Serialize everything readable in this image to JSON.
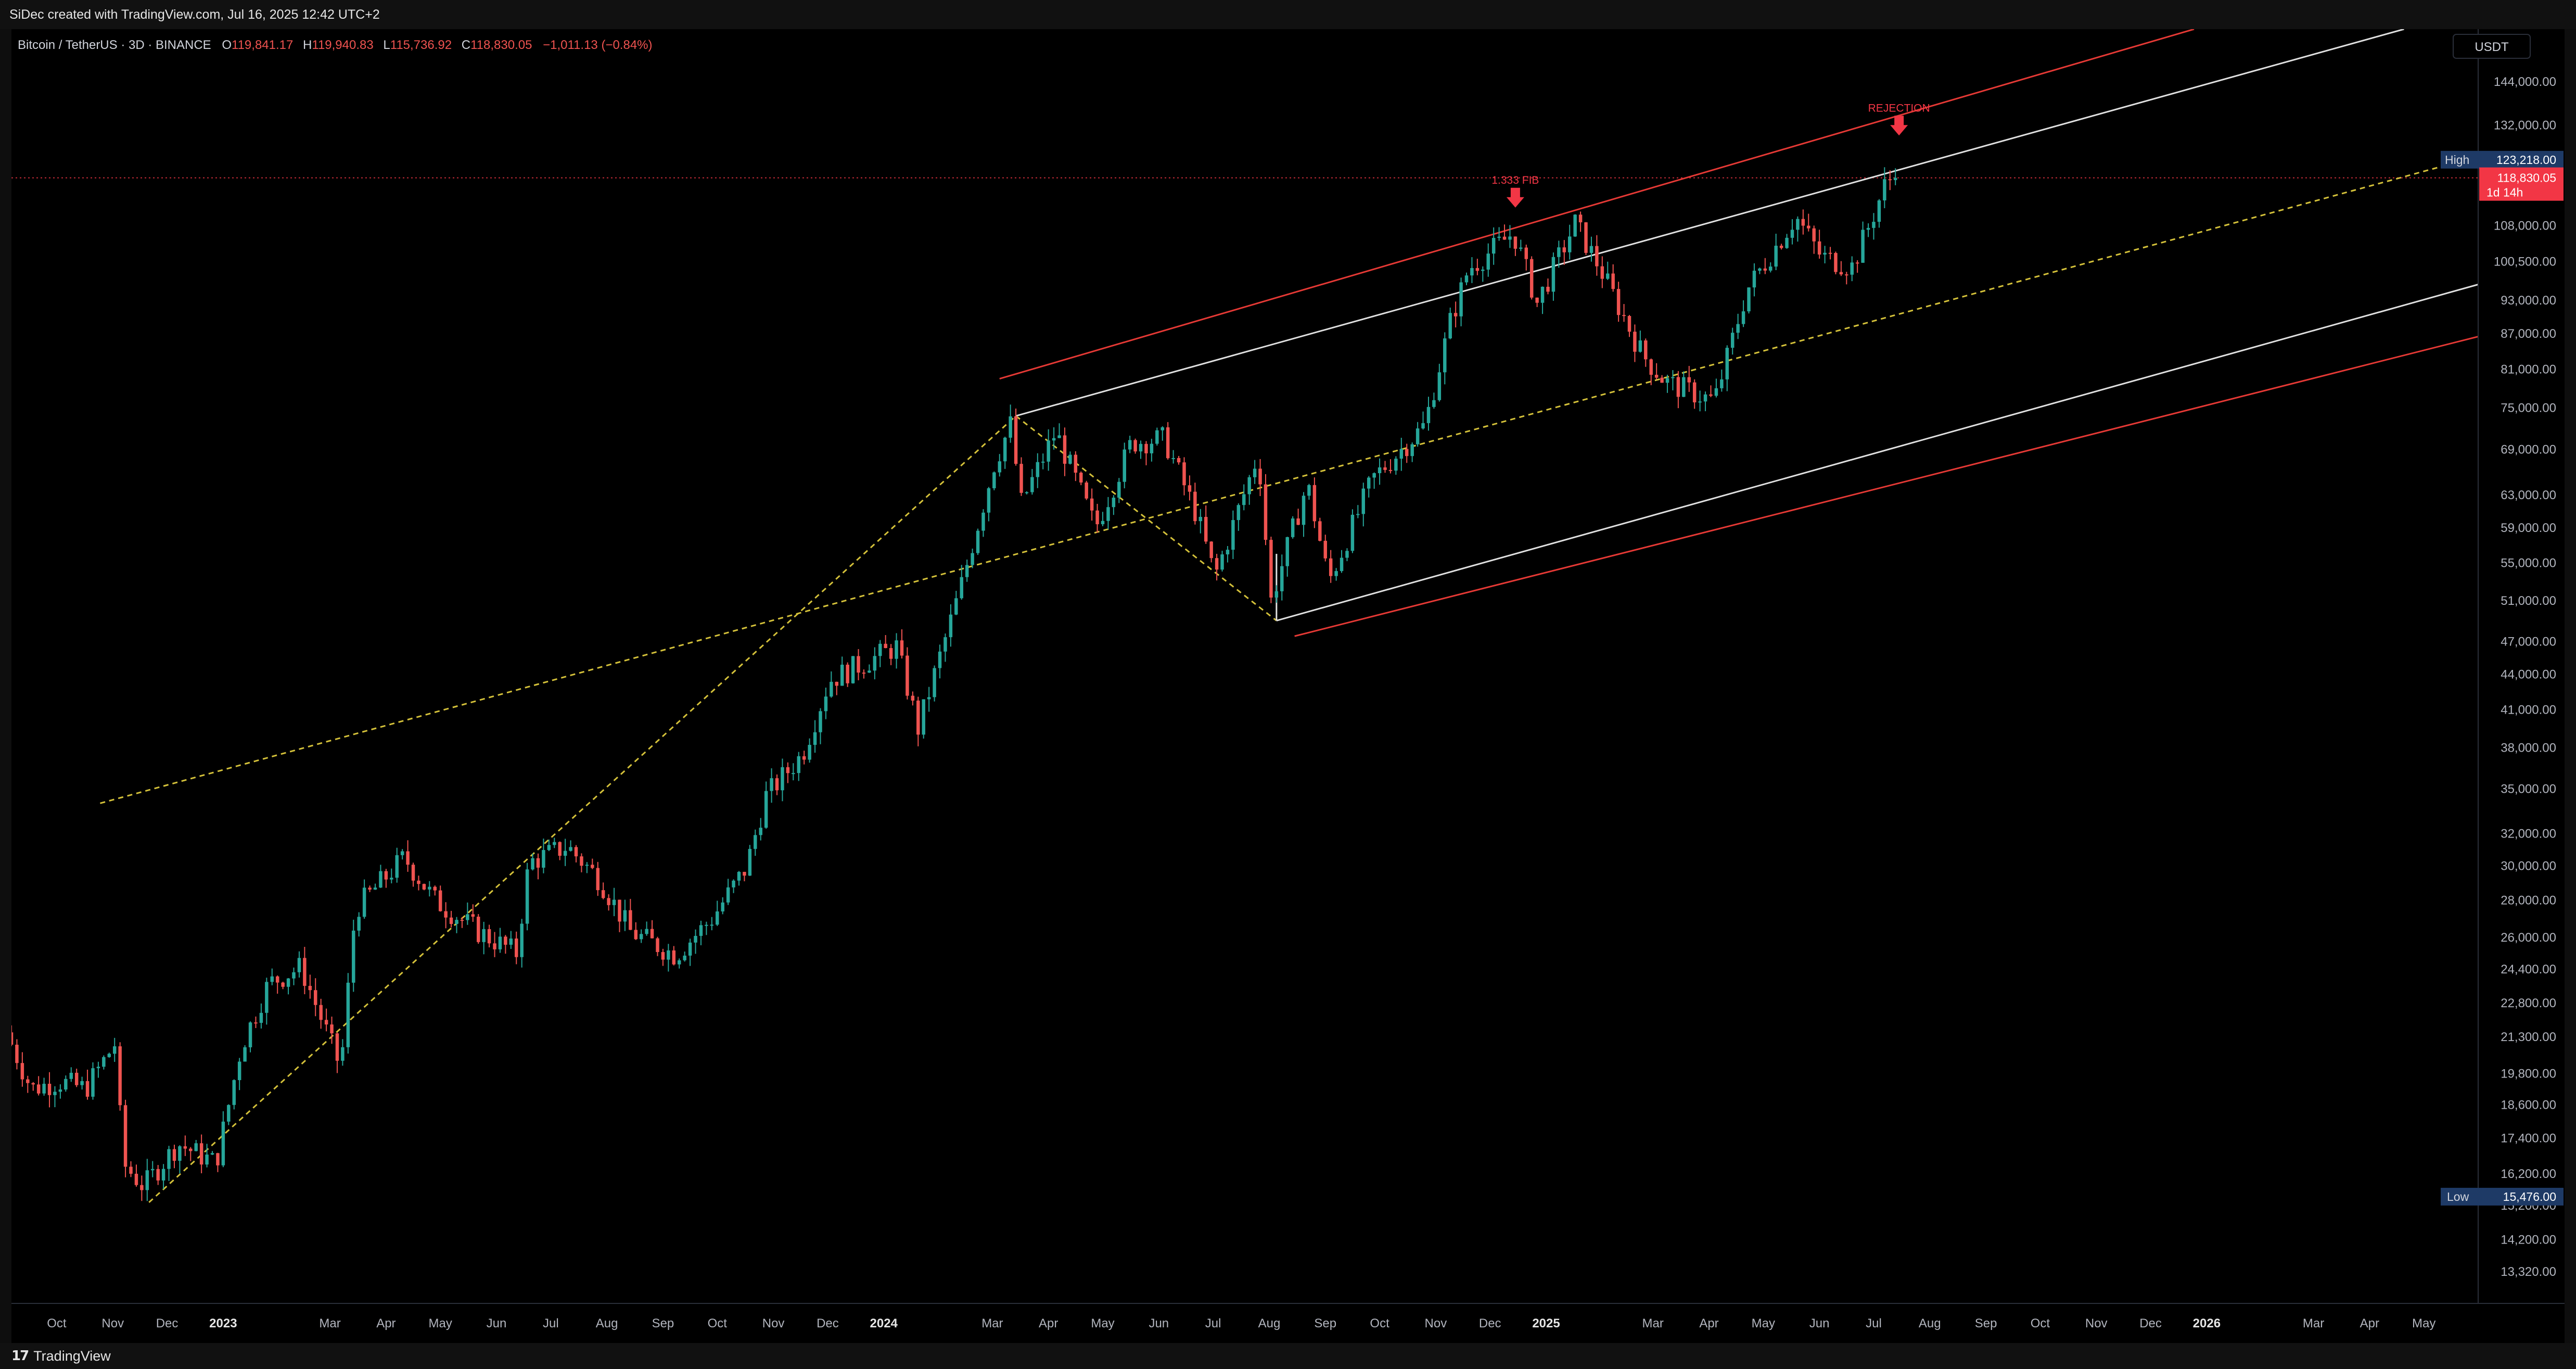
{
  "header": {
    "credit": "SiDec created with TradingView.com, Jul 16, 2025 12:42 UTC+2"
  },
  "footer": {
    "brand": "TradingView",
    "logo_glyph": "17"
  },
  "colors": {
    "background": "#000000",
    "up": "#26a69a",
    "down": "#ef5350",
    "red_channel": "#e53935",
    "white_channel": "#e0e0e0",
    "fib_dashed": "#d4c13a",
    "high_badge": "#1e3a66",
    "price_badge": "#f23645"
  },
  "chart_data": {
    "type": "candlestick",
    "symbol_line": {
      "name": "Bitcoin / TetherUS · 3D · BINANCE",
      "open_label": "O",
      "open": "119,841.17",
      "high_label": "H",
      "high": "119,940.83",
      "low_label": "L",
      "low": "115,736.92",
      "close_label": "C",
      "close": "118,830.05",
      "change": "−1,011.13 (−0.84%)"
    },
    "currency": "USDT",
    "y_scale": "log",
    "ylim": [
      12500,
      160000
    ],
    "x_start": "2022-09-06",
    "x_end": "2026-05-31",
    "y_ticks": [
      "144,000.00",
      "132,000.00",
      "108,000.00",
      "100,500.00",
      "93,000.00",
      "87,000.00",
      "81,000.00",
      "75,000.00",
      "69,000.00",
      "63,000.00",
      "59,000.00",
      "55,000.00",
      "51,000.00",
      "47,000.00",
      "44,000.00",
      "41,000.00",
      "38,000.00",
      "35,000.00",
      "32,000.00",
      "30,000.00",
      "28,000.00",
      "26,000.00",
      "24,400.00",
      "22,800.00",
      "21,300.00",
      "19,800.00",
      "18,600.00",
      "17,400.00",
      "16,200.00",
      "15,200.00",
      "14,200.00",
      "13,320.00"
    ],
    "x_ticks": [
      {
        "label": "Oct",
        "date": "2022-10-01"
      },
      {
        "label": "Nov",
        "date": "2022-11-01"
      },
      {
        "label": "Dec",
        "date": "2022-12-01"
      },
      {
        "label": "2023",
        "date": "2023-01-01",
        "bold": true
      },
      {
        "label": "Mar",
        "date": "2023-03-01"
      },
      {
        "label": "Apr",
        "date": "2023-04-01"
      },
      {
        "label": "May",
        "date": "2023-05-01"
      },
      {
        "label": "Jun",
        "date": "2023-06-01"
      },
      {
        "label": "Jul",
        "date": "2023-07-01"
      },
      {
        "label": "Aug",
        "date": "2023-08-01"
      },
      {
        "label": "Sep",
        "date": "2023-09-01"
      },
      {
        "label": "Oct",
        "date": "2023-10-01"
      },
      {
        "label": "Nov",
        "date": "2023-11-01"
      },
      {
        "label": "Dec",
        "date": "2023-12-01"
      },
      {
        "label": "2024",
        "date": "2024-01-01",
        "bold": true
      },
      {
        "label": "Mar",
        "date": "2024-03-01"
      },
      {
        "label": "Apr",
        "date": "2024-04-01"
      },
      {
        "label": "May",
        "date": "2024-05-01"
      },
      {
        "label": "Jun",
        "date": "2024-06-01"
      },
      {
        "label": "Jul",
        "date": "2024-07-01"
      },
      {
        "label": "Aug",
        "date": "2024-08-01"
      },
      {
        "label": "Sep",
        "date": "2024-09-01"
      },
      {
        "label": "Oct",
        "date": "2024-10-01"
      },
      {
        "label": "Nov",
        "date": "2024-11-01"
      },
      {
        "label": "Dec",
        "date": "2024-12-01"
      },
      {
        "label": "2025",
        "date": "2025-01-01",
        "bold": true
      },
      {
        "label": "Mar",
        "date": "2025-03-01"
      },
      {
        "label": "Apr",
        "date": "2025-04-01"
      },
      {
        "label": "May",
        "date": "2025-05-01"
      },
      {
        "label": "Jun",
        "date": "2025-06-01"
      },
      {
        "label": "Jul",
        "date": "2025-07-01"
      },
      {
        "label": "Aug",
        "date": "2025-08-01"
      },
      {
        "label": "Sep",
        "date": "2025-09-01"
      },
      {
        "label": "Oct",
        "date": "2025-10-01"
      },
      {
        "label": "Nov",
        "date": "2025-11-01"
      },
      {
        "label": "Dec",
        "date": "2025-12-01"
      },
      {
        "label": "2026",
        "date": "2026-01-01",
        "bold": true
      },
      {
        "label": "Mar",
        "date": "2026-03-01"
      },
      {
        "label": "Apr",
        "date": "2026-04-01"
      },
      {
        "label": "May",
        "date": "2026-05-01"
      }
    ],
    "price_path": [
      [
        "2022-09-06",
        21500
      ],
      [
        "2022-09-20",
        19200
      ],
      [
        "2022-10-05",
        19500
      ],
      [
        "2022-10-20",
        19200
      ],
      [
        "2022-11-05",
        21000
      ],
      [
        "2022-11-10",
        16500
      ],
      [
        "2022-11-21",
        15800
      ],
      [
        "2022-12-10",
        17200
      ],
      [
        "2022-12-31",
        16550
      ],
      [
        "2023-01-14",
        20900
      ],
      [
        "2023-01-29",
        23700
      ],
      [
        "2023-02-16",
        24500
      ],
      [
        "2023-03-10",
        20000
      ],
      [
        "2023-03-18",
        27500
      ],
      [
        "2023-04-14",
        30500
      ],
      [
        "2023-05-01",
        28000
      ],
      [
        "2023-05-25",
        26300
      ],
      [
        "2023-06-15",
        25200
      ],
      [
        "2023-06-22",
        30200
      ],
      [
        "2023-07-13",
        31200
      ],
      [
        "2023-07-31",
        29200
      ],
      [
        "2023-08-17",
        26300
      ],
      [
        "2023-09-11",
        25100
      ],
      [
        "2023-10-01",
        27000
      ],
      [
        "2023-10-20",
        29900
      ],
      [
        "2023-10-31",
        34500
      ],
      [
        "2023-11-20",
        37500
      ],
      [
        "2023-12-05",
        43500
      ],
      [
        "2024-01-11",
        46500
      ],
      [
        "2024-01-23",
        39500
      ],
      [
        "2024-02-15",
        52000
      ],
      [
        "2024-03-05",
        67000
      ],
      [
        "2024-03-14",
        72500
      ],
      [
        "2024-03-20",
        62000
      ],
      [
        "2024-04-08",
        71500
      ],
      [
        "2024-04-30",
        59000
      ],
      [
        "2024-05-20",
        70000
      ],
      [
        "2024-06-07",
        70500
      ],
      [
        "2024-06-25",
        60500
      ],
      [
        "2024-07-05",
        53500
      ],
      [
        "2024-07-29",
        68500
      ],
      [
        "2024-08-05",
        51000
      ],
      [
        "2024-08-25",
        64500
      ],
      [
        "2024-09-06",
        53000
      ],
      [
        "2024-09-30",
        65000
      ],
      [
        "2024-10-29",
        72500
      ],
      [
        "2024-11-12",
        89000
      ],
      [
        "2024-11-22",
        99000
      ],
      [
        "2024-12-17",
        106500
      ],
      [
        "2024-12-30",
        92500
      ],
      [
        "2025-01-20",
        108500
      ],
      [
        "2025-02-03",
        99000
      ],
      [
        "2025-02-26",
        83500
      ],
      [
        "2025-03-11",
        79000
      ],
      [
        "2025-04-07",
        76000
      ],
      [
        "2025-04-25",
        95000
      ],
      [
        "2025-05-22",
        110000
      ],
      [
        "2025-06-05",
        101500
      ],
      [
        "2025-06-22",
        99500
      ],
      [
        "2025-07-03",
        109500
      ],
      [
        "2025-07-11",
        118000
      ],
      [
        "2025-07-15",
        118830
      ]
    ],
    "drawings": {
      "white_channel_upper": [
        [
          "2024-03-14",
          73800
        ],
        [
          "2026-04-20",
          160000
        ]
      ],
      "white_channel_lower": [
        [
          "2024-08-05",
          49000
        ],
        [
          "2026-05-31",
          96000
        ]
      ],
      "red_channel_upper": [
        [
          "2024-03-05",
          79500
        ],
        [
          "2025-12-25",
          160000
        ]
      ],
      "red_channel_lower": [
        [
          "2024-08-15",
          47500
        ],
        [
          "2026-05-31",
          86500
        ]
      ],
      "fib_line_a": [
        [
          "2022-11-21",
          15300
        ],
        [
          "2024-03-14",
          73800
        ]
      ],
      "fib_line_b": [
        [
          "2024-03-14",
          73800
        ],
        [
          "2024-08-05",
          49000
        ]
      ],
      "fib_line_c": [
        [
          "2022-10-25",
          34000
        ],
        [
          "2026-05-31",
          124000
        ]
      ],
      "recent_close_line": 118830
    },
    "annotations": [
      {
        "text": "1.333 FIB",
        "date": "2024-12-15",
        "price": 111500
      },
      {
        "text": "REJECTION",
        "date": "2025-07-15",
        "price": 128800
      }
    ],
    "badges": {
      "high": {
        "label": "High",
        "value": "123,218.00"
      },
      "current": {
        "value": "118,830.05",
        "countdown": "1d 14h"
      },
      "low": {
        "label": "Low",
        "value": "15,476.00"
      }
    }
  }
}
